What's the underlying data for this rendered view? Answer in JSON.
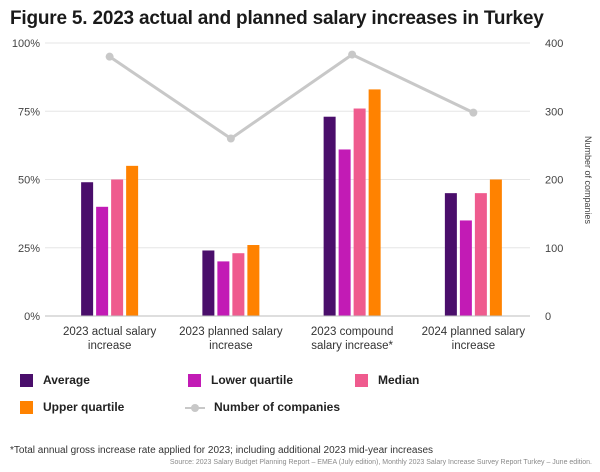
{
  "chart_data": {
    "type": "bar",
    "title": "Figure 5. 2023 actual and planned salary increases in Turkey",
    "categories": [
      [
        "2023 actual salary",
        "increase"
      ],
      [
        "2023 planned salary",
        "increase"
      ],
      [
        "2023 compound",
        "salary increase*"
      ],
      [
        "2024 planned salary",
        "increase"
      ]
    ],
    "series": [
      {
        "name": "Average",
        "color": "#4a0e6b",
        "values": [
          49,
          24,
          73,
          45
        ]
      },
      {
        "name": "Lower quartile",
        "color": "#c21bb5",
        "values": [
          40,
          20,
          61,
          35
        ]
      },
      {
        "name": "Median",
        "color": "#ef5b8e",
        "values": [
          50,
          23,
          76,
          45
        ]
      },
      {
        "name": "Upper quartile",
        "color": "#ff8200",
        "values": [
          55,
          26,
          83,
          50
        ]
      }
    ],
    "line_series": {
      "name": "Number of companies",
      "color": "#c8c8c8",
      "values": [
        380,
        260,
        383,
        298
      ]
    },
    "y_left": {
      "min": 0,
      "max": 100,
      "ticks": [
        "0%",
        "25%",
        "50%",
        "75%",
        "100%"
      ]
    },
    "y_right": {
      "min": 0,
      "max": 400,
      "ticks": [
        "0",
        "100",
        "200",
        "300",
        "400"
      ],
      "label": "Number of companies"
    },
    "xlabel": "",
    "ylabel": "",
    "grid": true,
    "legend_placement": "bottom"
  },
  "footnote": "*Total annual gross increase rate applied for 2023; including additional 2023 mid-year increases",
  "source": "Source: 2023 Salary Budget Planning Report – EMEA (July edition), Monthly 2023 Salary Increase Survey Report Turkey – June edition."
}
